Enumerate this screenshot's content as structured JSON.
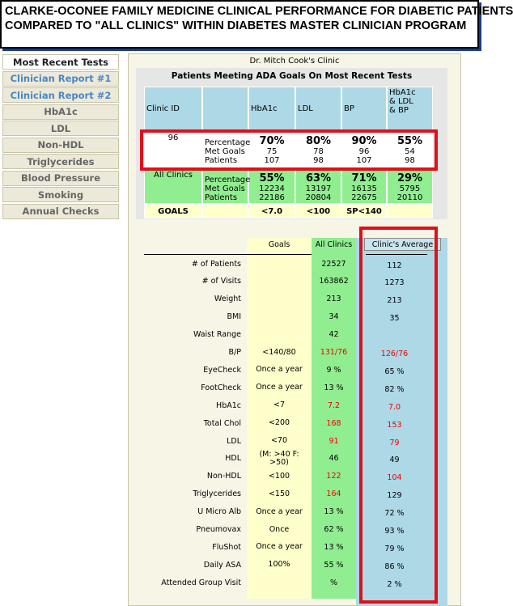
{
  "header": {
    "title_lines": [
      "CLARKE-OCONEE FAMILY MEDICINE CLINICAL PERFORMANCE FOR DIABETIC PATIENTS",
      "COMPARED TO \"ALL CLINICS\" WITHIN DIABETES MASTER CLINICIAN PROGRAM"
    ]
  },
  "nav": {
    "selected": 0,
    "link_items": [
      1,
      2
    ],
    "items": [
      "Most Recent Tests",
      "Clinician Report #1",
      "Clinician Report #2",
      "HbA1c",
      "LDL",
      "Non-HDL",
      "Triglycerides",
      "Blood Pressure",
      "Smoking",
      "Annual Checks"
    ]
  },
  "clinic_name": "Dr. Mitch Cook's Clinic",
  "top_table": {
    "title": "Patients Meeting ADA Goals On Most Recent Tests",
    "headers": [
      "Clinic ID",
      null,
      "HbA1c",
      "LDL",
      "BP",
      "HbA1c & LDL & BP"
    ],
    "row_labels": [
      "Percentage",
      "Met Goals",
      "Patients"
    ],
    "clinic": {
      "id": "96",
      "cells": [
        [
          "70%",
          75,
          107
        ],
        [
          "80%",
          78,
          98
        ],
        [
          "90%",
          96,
          107
        ],
        [
          "55%",
          54,
          98
        ]
      ]
    },
    "all_clinics": {
      "label": "All Clinics",
      "cells": [
        [
          "55%",
          12234,
          22186
        ],
        [
          "63%",
          13197,
          20804
        ],
        [
          "71%",
          16135,
          22675
        ],
        [
          "29%",
          5795,
          20110
        ]
      ]
    },
    "goals": [
      "GOALS",
      null,
      "<7.0",
      "<100",
      "SP<140",
      null
    ]
  },
  "metrics": {
    "headers": [
      "Goals",
      "All Clinics",
      "Clinic's Average"
    ],
    "rows": [
      {
        "label": "# of Patients",
        "goal": null,
        "all": 22527,
        "avg": 112,
        "all_red": false,
        "avg_red": false
      },
      {
        "label": "# of Visits",
        "goal": null,
        "all": 163862,
        "avg": 1273,
        "all_red": false,
        "avg_red": false
      },
      {
        "label": "Weight",
        "goal": null,
        "all": 213,
        "avg": 213,
        "all_red": false,
        "avg_red": false
      },
      {
        "label": "BMI",
        "goal": null,
        "all": 34,
        "avg": 35,
        "all_red": false,
        "avg_red": false
      },
      {
        "label": "Waist Range",
        "goal": null,
        "all": 42,
        "avg": null,
        "all_red": false,
        "avg_red": false
      },
      {
        "label": "B/P",
        "goal": "<140/80",
        "all": "131/76",
        "avg": "126/76",
        "all_red": true,
        "avg_red": true
      },
      {
        "label": "EyeCheck",
        "goal": "Once a year",
        "all": "9 %",
        "avg": "65 %",
        "all_red": false,
        "avg_red": false
      },
      {
        "label": "FootCheck",
        "goal": "Once a year",
        "all": "13 %",
        "avg": "82 %",
        "all_red": false,
        "avg_red": false
      },
      {
        "label": "HbA1c",
        "goal": "<7",
        "all": "7.2",
        "avg": "7.0",
        "all_red": true,
        "avg_red": true
      },
      {
        "label": "Total Chol",
        "goal": "<200",
        "all": 168,
        "avg": 153,
        "all_red": true,
        "avg_red": true
      },
      {
        "label": "LDL",
        "goal": "<70",
        "all": 91,
        "avg": 79,
        "all_red": true,
        "avg_red": true
      },
      {
        "label": "HDL",
        "goal": "(M: >40 F: >50)",
        "all": 46,
        "avg": 49,
        "all_red": false,
        "avg_red": false
      },
      {
        "label": "Non-HDL",
        "goal": "<100",
        "all": 122,
        "avg": 104,
        "all_red": true,
        "avg_red": true
      },
      {
        "label": "Triglycerides",
        "goal": "<150",
        "all": 164,
        "avg": 129,
        "all_red": true,
        "avg_red": false
      },
      {
        "label": "U Micro Alb",
        "goal": "Once a year",
        "all": "13 %",
        "avg": "72 %",
        "all_red": false,
        "avg_red": false
      },
      {
        "label": "Pneumovax",
        "goal": "Once",
        "all": "62 %",
        "avg": "93 %",
        "all_red": false,
        "avg_red": false
      },
      {
        "label": "FluShot",
        "goal": "Once a year",
        "all": "13 %",
        "avg": "79 %",
        "all_red": false,
        "avg_red": false
      },
      {
        "label": "Daily ASA",
        "goal": "100%",
        "all": "55 %",
        "avg": "86 %",
        "all_red": false,
        "avg_red": false
      },
      {
        "label": "Attended Group Visit",
        "goal": null,
        "all": "%",
        "avg": "2 %",
        "all_red": false,
        "avg_red": false
      }
    ]
  }
}
